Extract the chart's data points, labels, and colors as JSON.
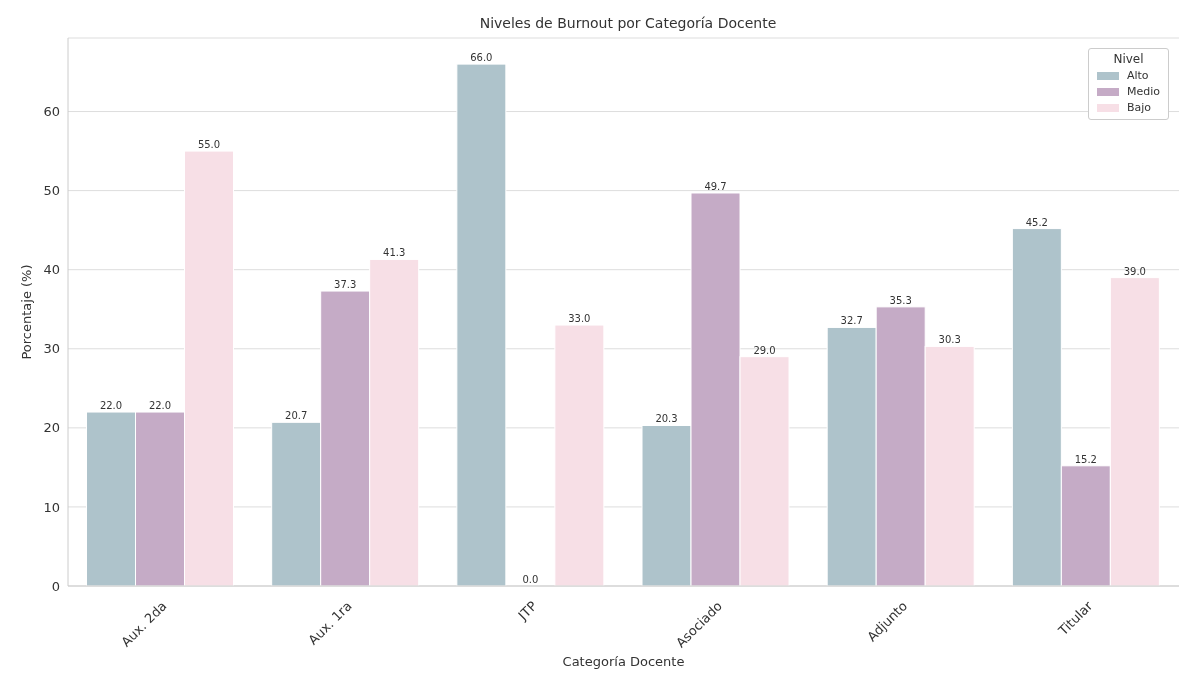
{
  "chart_data": {
    "type": "bar",
    "title": "Niveles de Burnout por Categoría Docente",
    "xlabel": "Categoría Docente",
    "ylabel": "Porcentaje (%)",
    "legend_title": "Nivel",
    "categories": [
      "Aux. 2da",
      "Aux. 1ra",
      "JTP",
      "Asociado",
      "Adjunto",
      "Titular"
    ],
    "series": [
      {
        "name": "Alto",
        "color": "#aec3cb",
        "values": [
          22.0,
          20.7,
          66.0,
          20.3,
          32.7,
          45.2
        ],
        "value_labels": [
          "22.0",
          "20.7",
          "66.0",
          "20.3",
          "32.7",
          "45.2"
        ]
      },
      {
        "name": "Medio",
        "color": "#c5abc6",
        "values": [
          22.0,
          37.3,
          0.0,
          49.7,
          35.3,
          15.2
        ],
        "value_labels": [
          "22.0",
          "37.3",
          "0.0",
          "49.7",
          "35.3",
          "15.2"
        ]
      },
      {
        "name": "Bajo",
        "color": "#f7dfe6",
        "values": [
          55.0,
          41.3,
          33.0,
          29.0,
          30.3,
          39.0
        ],
        "value_labels": [
          "55.0",
          "41.3",
          "33.0",
          "29.0",
          "30.3",
          "39.0"
        ]
      }
    ],
    "ylim": [
      0,
      69.3
    ],
    "yticks": [
      0,
      10,
      20,
      30,
      40,
      50,
      60
    ],
    "grid": "y",
    "legend": "top right"
  }
}
